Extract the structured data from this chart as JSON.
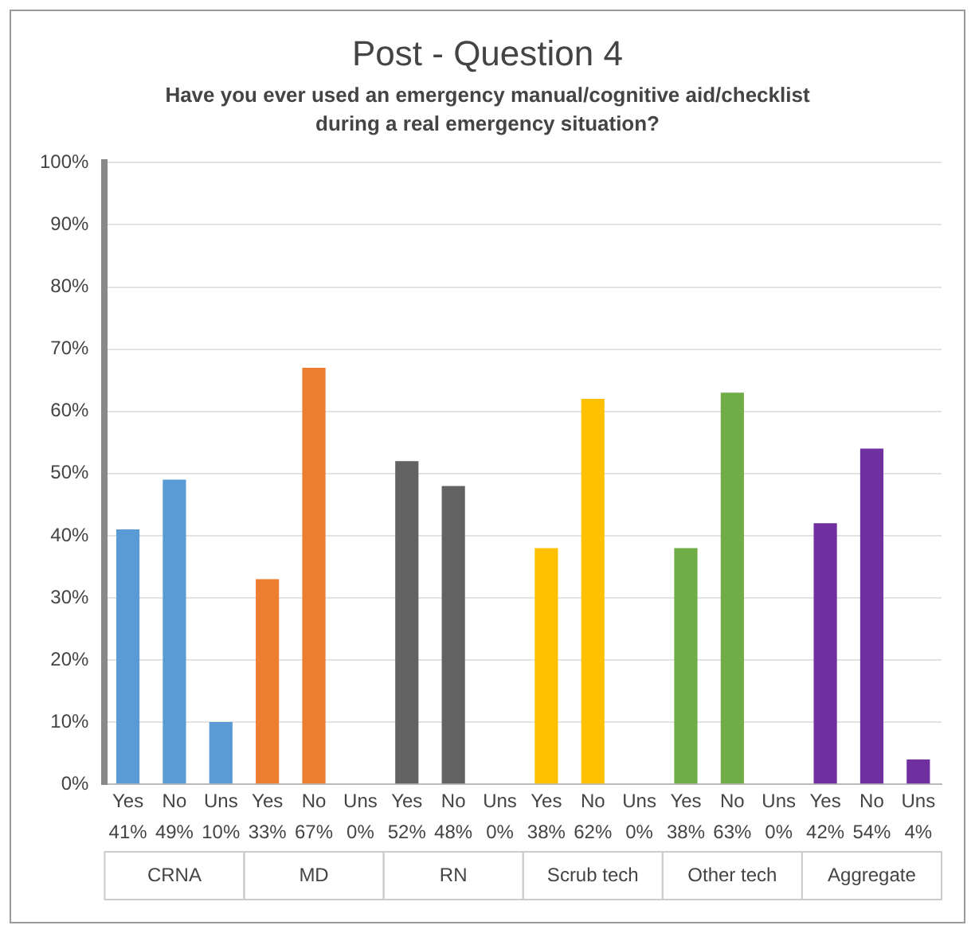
{
  "chart_data": {
    "type": "bar",
    "title": "Post - Question 4",
    "subtitle": "Have you ever used an emergency manual/cognitive aid/checklist during a real emergency situation?",
    "categories": [
      "Yes",
      "No",
      "Uns",
      "Yes",
      "No",
      "Uns",
      "Yes",
      "No",
      "Uns",
      "Yes",
      "No",
      "Uns",
      "Yes",
      "No",
      "Uns",
      "Yes",
      "No",
      "Uns"
    ],
    "stacked": true,
    "grid": "y",
    "annotations": [
      "CRNA",
      "MD",
      "RN",
      "Scrub tech",
      "Other tech",
      "Aggregate"
    ],
    "ylim": [
      0,
      100
    ],
    "yticks": [
      {
        "value": 0,
        "label": "0%"
      },
      {
        "value": 10,
        "label": "10%"
      },
      {
        "value": 20,
        "label": "20%"
      },
      {
        "value": 30,
        "label": "30%"
      },
      {
        "value": 40,
        "label": "40%"
      },
      {
        "value": 50,
        "label": "50%"
      },
      {
        "value": 60,
        "label": "60%"
      },
      {
        "value": 70,
        "label": "70%"
      },
      {
        "value": 80,
        "label": "80%"
      },
      {
        "value": 90,
        "label": "90%"
      },
      {
        "value": 100,
        "label": "100%"
      }
    ],
    "series": [
      {
        "color": "#5b9bd5",
        "values": [
          41,
          49,
          10,
          null,
          null,
          null,
          null,
          null,
          null,
          null,
          null,
          null,
          null,
          null,
          null,
          null,
          null,
          null
        ],
        "value_labels": [
          "41%",
          "49%",
          "10%",
          null,
          null,
          null,
          null,
          null,
          null,
          null,
          null,
          null,
          null,
          null,
          null,
          null,
          null,
          null
        ]
      },
      {
        "color": "#ed7d31",
        "values": [
          null,
          null,
          null,
          33,
          67,
          0,
          null,
          null,
          null,
          null,
          null,
          null,
          null,
          null,
          null,
          null,
          null,
          null
        ],
        "value_labels": [
          null,
          null,
          null,
          "33%",
          "67%",
          "0%",
          null,
          null,
          null,
          null,
          null,
          null,
          null,
          null,
          null,
          null,
          null,
          null
        ]
      },
      {
        "color": "#636363",
        "values": [
          null,
          null,
          null,
          null,
          null,
          null,
          52,
          48,
          0,
          null,
          null,
          null,
          null,
          null,
          null,
          null,
          null,
          null
        ],
        "value_labels": [
          null,
          null,
          null,
          null,
          null,
          null,
          "52%",
          "48%",
          "0%",
          null,
          null,
          null,
          null,
          null,
          null,
          null,
          null,
          null
        ]
      },
      {
        "color": "#ffc000",
        "values": [
          null,
          null,
          null,
          null,
          null,
          null,
          null,
          null,
          null,
          38,
          62,
          0,
          null,
          null,
          null,
          null,
          null,
          null
        ],
        "value_labels": [
          null,
          null,
          null,
          null,
          null,
          null,
          null,
          null,
          null,
          "38%",
          "62%",
          "0%",
          null,
          null,
          null,
          null,
          null,
          null
        ]
      },
      {
        "color": "#70ad47",
        "values": [
          null,
          null,
          null,
          null,
          null,
          null,
          null,
          null,
          null,
          null,
          null,
          null,
          38,
          63,
          0,
          null,
          null,
          null
        ],
        "value_labels": [
          null,
          null,
          null,
          null,
          null,
          null,
          null,
          null,
          null,
          null,
          null,
          null,
          "38%",
          "63%",
          "0%",
          null,
          null,
          null
        ]
      },
      {
        "color": "#7030a0",
        "values": [
          null,
          null,
          null,
          null,
          null,
          null,
          null,
          null,
          null,
          null,
          null,
          null,
          null,
          null,
          null,
          42,
          54,
          4
        ],
        "value_labels": [
          null,
          null,
          null,
          null,
          null,
          null,
          null,
          null,
          null,
          null,
          null,
          null,
          null,
          null,
          null,
          "42%",
          "54%",
          "4%"
        ]
      }
    ]
  }
}
